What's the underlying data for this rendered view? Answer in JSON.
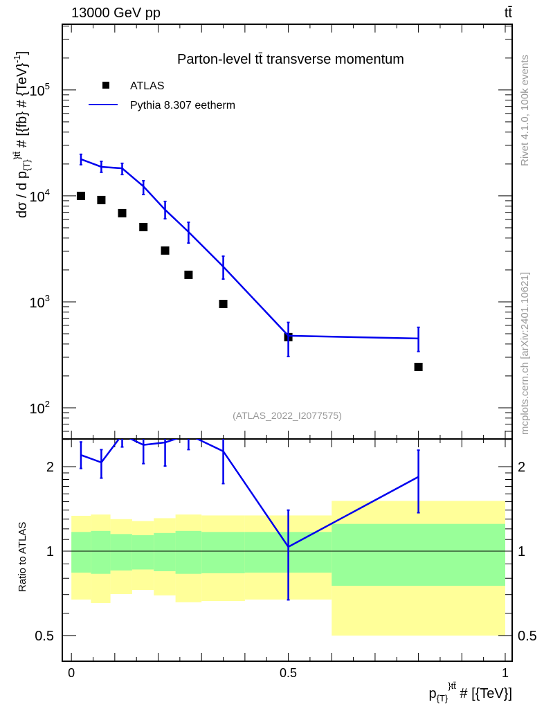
{
  "header": {
    "energy": "13000 GeV pp",
    "process": "tt̄"
  },
  "chart_data": {
    "type": "scatter",
    "title": "Parton-level tt̄ transverse momentum",
    "analysis": "(ATLAS_2022_I2077575)",
    "xlabel": {
      "main": "p",
      "sub": "{T}",
      "sup": "}tt̄",
      "rest": " # [{TeV}]"
    },
    "ylabel": {
      "main": "dσ / d p",
      "sub": "{T}",
      "sup": "}tt̄",
      "rest": " # [{fb} # {TeV}",
      "sup2": "-1",
      "end": "]"
    },
    "ratio_ylabel": "Ratio to ATLAS",
    "side_text_1": "Rivet 4.1.0,  100k events",
    "side_text_2": "mcplots.cern.ch [arXiv:2401.10621]",
    "xlim": [
      -0.021,
      1.016
    ],
    "ylim": [
      50.8,
      417000
    ],
    "yscale": "log",
    "ratio_ylim": [
      0.405,
      2.51
    ],
    "x_ticks": [
      {
        "v": 0,
        "label": "0"
      },
      {
        "v": 0.5,
        "label": "0.5"
      },
      {
        "v": 1,
        "label": "1"
      }
    ],
    "y_ticks": [
      {
        "v": 100,
        "base": "10",
        "exp": "2"
      },
      {
        "v": 1000,
        "base": "10",
        "exp": "3"
      },
      {
        "v": 10000,
        "base": "10",
        "exp": "4"
      },
      {
        "v": 100000,
        "base": "10",
        "exp": "5"
      }
    ],
    "ratio_ticks": [
      {
        "v": 0.5,
        "label": "0.5"
      },
      {
        "v": 1,
        "label": "1"
      },
      {
        "v": 2,
        "label": "2"
      }
    ],
    "legend": {
      "position": "top-left",
      "entries": [
        "ATLAS",
        "Pythia 8.307 eetherm"
      ]
    },
    "bin_edges": [
      0,
      0.045,
      0.09,
      0.14,
      0.19,
      0.24,
      0.3,
      0.4,
      0.6,
      1.0
    ],
    "x": [
      0.022,
      0.069,
      0.117,
      0.166,
      0.216,
      0.27,
      0.35,
      0.5,
      0.8
    ],
    "series": [
      {
        "name": "ATLAS",
        "color": "#000000",
        "values": [
          10000,
          9140,
          6870,
          5080,
          3050,
          1800,
          955,
          465,
          243
        ]
      },
      {
        "name": "Pythia 8.307 eetherm",
        "color": "#0000ee",
        "values": [
          22200,
          18800,
          18200,
          12300,
          7400,
          4570,
          2150,
          479,
          451
        ],
        "err_up": [
          24700,
          21200,
          20300,
          13900,
          8870,
          5640,
          2700,
          640,
          575
        ],
        "err_down": [
          19700,
          16700,
          15900,
          10300,
          6090,
          3590,
          1640,
          305,
          340
        ],
        "ratio": [
          2.2,
          2.07,
          2.6,
          2.39,
          2.44,
          2.6,
          2.27,
          1.035,
          1.84
        ],
        "ratio_up": [
          2.45,
          2.3,
          2.9,
          2.7,
          2.75,
          2.9,
          2.6,
          1.4,
          2.29
        ],
        "ratio_down": [
          1.97,
          1.82,
          2.35,
          2.05,
          2.01,
          2.3,
          1.74,
          0.67,
          1.37
        ]
      }
    ],
    "data_band_stat": {
      "color": "#99ff99",
      "up": [
        1.17,
        1.18,
        1.15,
        1.14,
        1.16,
        1.18,
        1.17,
        1.17,
        1.25
      ],
      "down": [
        0.838,
        0.83,
        0.853,
        0.86,
        0.848,
        0.83,
        0.834,
        0.838,
        0.752
      ]
    },
    "data_band_total": {
      "color": "#ffff99",
      "up": [
        1.336,
        1.35,
        1.3,
        1.28,
        1.31,
        1.35,
        1.34,
        1.34,
        1.51
      ],
      "down": [
        0.672,
        0.653,
        0.703,
        0.727,
        0.695,
        0.657,
        0.664,
        0.672,
        0.5
      ]
    }
  }
}
